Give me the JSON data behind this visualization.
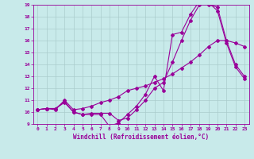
{
  "xlabel": "Windchill (Refroidissement éolien,°C)",
  "bg_color": "#c8eaea",
  "line_color": "#990099",
  "grid_color": "#aacccc",
  "xlim": [
    -0.5,
    23.5
  ],
  "ylim": [
    9,
    19
  ],
  "xticks": [
    0,
    1,
    2,
    3,
    4,
    5,
    6,
    7,
    8,
    9,
    10,
    11,
    12,
    13,
    14,
    15,
    16,
    17,
    18,
    19,
    20,
    21,
    22,
    23
  ],
  "yticks": [
    9,
    10,
    11,
    12,
    13,
    14,
    15,
    16,
    17,
    18,
    19
  ],
  "line1_x": [
    0,
    1,
    2,
    3,
    4,
    5,
    6,
    7,
    8,
    9,
    10,
    11,
    12,
    13,
    14,
    15,
    16,
    17,
    18,
    19,
    20,
    21,
    22,
    23
  ],
  "line1_y": [
    10.2,
    10.3,
    10.3,
    10.8,
    10.0,
    9.8,
    9.8,
    9.8,
    8.8,
    9.1,
    9.8,
    10.5,
    11.5,
    13.0,
    11.8,
    16.5,
    16.7,
    18.2,
    19.3,
    19.0,
    18.8,
    16.0,
    14.0,
    13.0
  ],
  "line2_x": [
    0,
    1,
    2,
    3,
    4,
    5,
    6,
    7,
    8,
    9,
    10,
    11,
    12,
    13,
    14,
    15,
    16,
    17,
    18,
    19,
    20,
    21,
    22,
    23
  ],
  "line2_y": [
    10.2,
    10.3,
    10.3,
    10.9,
    10.0,
    9.8,
    9.9,
    9.9,
    9.9,
    9.3,
    9.5,
    10.2,
    11.0,
    12.0,
    12.5,
    14.2,
    16.0,
    17.7,
    19.0,
    19.2,
    18.5,
    15.8,
    13.8,
    12.8
  ],
  "line3_x": [
    0,
    1,
    2,
    3,
    4,
    5,
    6,
    7,
    8,
    9,
    10,
    11,
    12,
    13,
    14,
    15,
    16,
    17,
    18,
    19,
    20,
    21,
    22,
    23
  ],
  "line3_y": [
    10.2,
    10.3,
    10.2,
    11.0,
    10.2,
    10.3,
    10.5,
    10.8,
    11.0,
    11.3,
    11.8,
    12.0,
    12.2,
    12.5,
    12.8,
    13.2,
    13.7,
    14.2,
    14.8,
    15.5,
    16.0,
    16.0,
    15.8,
    15.5
  ]
}
